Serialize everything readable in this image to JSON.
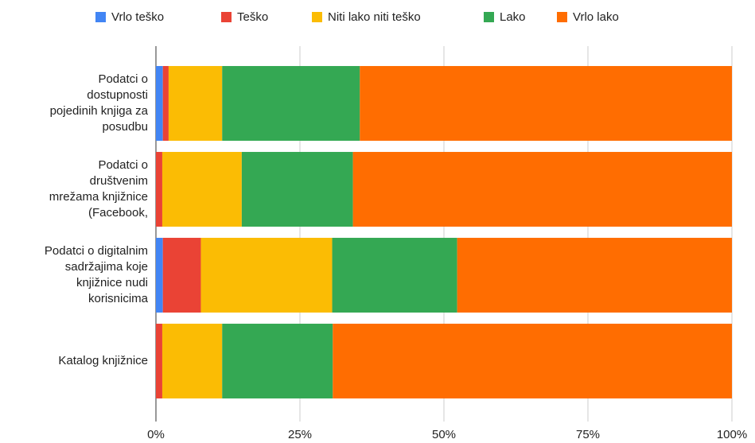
{
  "chart_data": {
    "type": "stacked_bar_horizontal_100",
    "categories": [
      [
        "Podatci o",
        "dostupnosti",
        "pojedinih knjiga za",
        "posudbu"
      ],
      [
        "Podatci o",
        "društvenim",
        "mrežama knjižnice",
        "(Facebook,"
      ],
      [
        "Podatci o digitalnim",
        "sadržajima koje",
        "knjižnice nudi",
        "korisnicima"
      ],
      [
        "Katalog knjižnice"
      ]
    ],
    "series": [
      {
        "name": "Vrlo teško",
        "color": "#4285f4",
        "values": [
          1.2,
          0,
          1.2,
          0
        ]
      },
      {
        "name": "Teško",
        "color": "#ea4335",
        "values": [
          1.0,
          1.1,
          6.6,
          1.1
        ]
      },
      {
        "name": "Niti lako niti teško",
        "color": "#fbbc04",
        "values": [
          9.3,
          13.8,
          22.8,
          10.4
        ]
      },
      {
        "name": "Lako",
        "color": "#34a853",
        "values": [
          23.9,
          19.3,
          21.7,
          19.2
        ]
      },
      {
        "name": "Vrlo lako",
        "color": "#ff6d01",
        "values": [
          64.6,
          65.8,
          47.7,
          69.3
        ]
      }
    ],
    "xlim": [
      0,
      100
    ],
    "xticks": [
      {
        "value": 0,
        "label": "0%"
      },
      {
        "value": 25,
        "label": "25%"
      },
      {
        "value": 50,
        "label": "50%"
      },
      {
        "value": 75,
        "label": "75%"
      },
      {
        "value": 100,
        "label": "100%"
      }
    ],
    "grid": true,
    "legend": "top"
  }
}
